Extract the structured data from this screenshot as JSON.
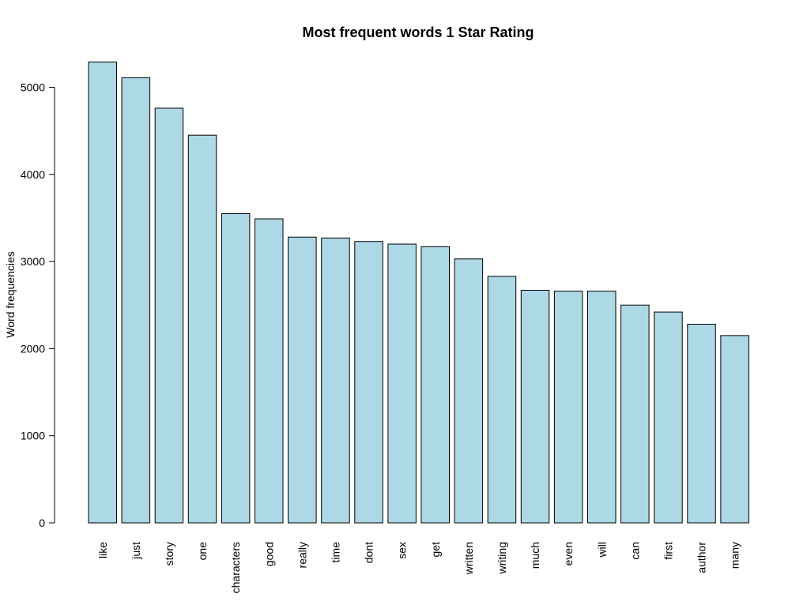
{
  "chart_data": {
    "type": "bar",
    "title": "Most frequent words 1 Star Rating",
    "xlabel": "",
    "ylabel": "Word frequencies",
    "categories": [
      "like",
      "just",
      "story",
      "one",
      "characters",
      "good",
      "really",
      "time",
      "dont",
      "sex",
      "get",
      "written",
      "writing",
      "much",
      "even",
      "will",
      "can",
      "first",
      "author",
      "many"
    ],
    "values": [
      5290,
      5110,
      4760,
      4450,
      3550,
      3490,
      3280,
      3270,
      3230,
      3200,
      3170,
      3030,
      2830,
      2670,
      2660,
      2660,
      2500,
      2420,
      2280,
      2150
    ],
    "ylim": [
      0,
      5290
    ],
    "yticks": [
      "0",
      "1000",
      "2000",
      "3000",
      "4000",
      "5000"
    ],
    "grid": false,
    "legend": "none",
    "colors": {
      "bar_fill": "#ADD8E6",
      "bar_stroke": "#000000"
    }
  }
}
